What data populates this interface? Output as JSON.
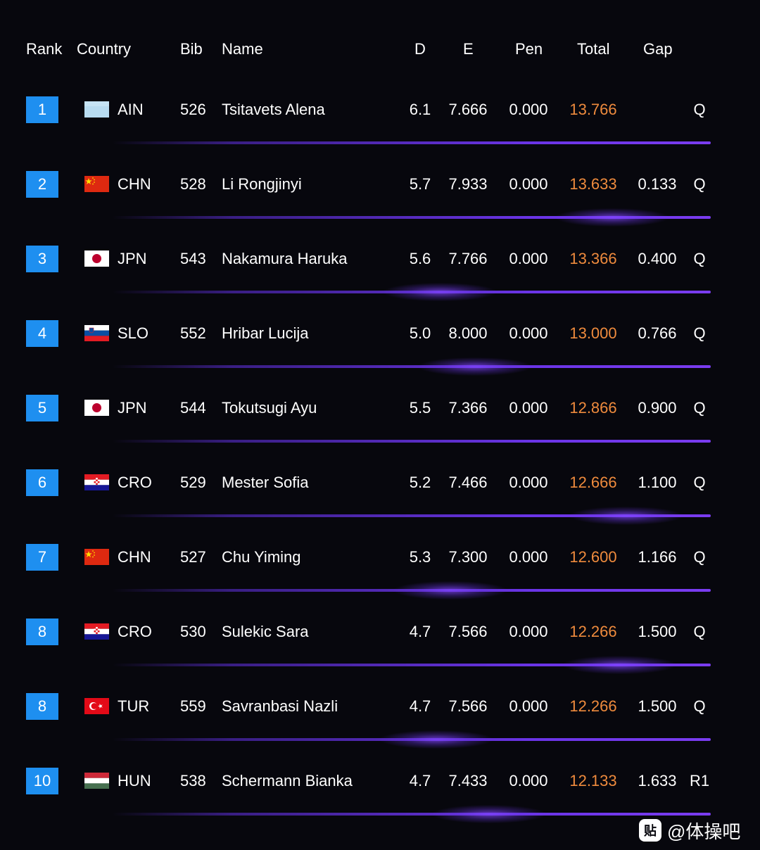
{
  "header": {
    "rank": "Rank",
    "country": "Country",
    "bib": "Bib",
    "name": "Name",
    "d": "D",
    "e": "E",
    "pen": "Pen",
    "total": "Total",
    "gap": "Gap"
  },
  "rows": [
    {
      "rank": "1",
      "country": "AIN",
      "flag": "ain-flag-icon",
      "bib": "526",
      "name": "Tsitavets Alena",
      "d": "6.1",
      "e": "7.666",
      "pen": "0.000",
      "total": "13.766",
      "gap": "",
      "q": "Q"
    },
    {
      "rank": "2",
      "country": "CHN",
      "flag": "chn-flag-icon",
      "bib": "528",
      "name": "Li Rongjinyi",
      "d": "5.7",
      "e": "7.933",
      "pen": "0.000",
      "total": "13.633",
      "gap": "0.133",
      "q": "Q"
    },
    {
      "rank": "3",
      "country": "JPN",
      "flag": "jpn-flag-icon",
      "bib": "543",
      "name": "Nakamura Haruka",
      "d": "5.6",
      "e": "7.766",
      "pen": "0.000",
      "total": "13.366",
      "gap": "0.400",
      "q": "Q"
    },
    {
      "rank": "4",
      "country": "SLO",
      "flag": "slo-flag-icon",
      "bib": "552",
      "name": "Hribar Lucija",
      "d": "5.0",
      "e": "8.000",
      "pen": "0.000",
      "total": "13.000",
      "gap": "0.766",
      "q": "Q"
    },
    {
      "rank": "5",
      "country": "JPN",
      "flag": "jpn-flag-icon",
      "bib": "544",
      "name": "Tokutsugi Ayu",
      "d": "5.5",
      "e": "7.366",
      "pen": "0.000",
      "total": "12.866",
      "gap": "0.900",
      "q": "Q"
    },
    {
      "rank": "6",
      "country": "CRO",
      "flag": "cro-flag-icon",
      "bib": "529",
      "name": "Mester Sofia",
      "d": "5.2",
      "e": "7.466",
      "pen": "0.000",
      "total": "12.666",
      "gap": "1.100",
      "q": "Q"
    },
    {
      "rank": "7",
      "country": "CHN",
      "flag": "chn-flag-icon",
      "bib": "527",
      "name": "Chu Yiming",
      "d": "5.3",
      "e": "7.300",
      "pen": "0.000",
      "total": "12.600",
      "gap": "1.166",
      "q": "Q"
    },
    {
      "rank": "8",
      "country": "CRO",
      "flag": "cro-flag-icon",
      "bib": "530",
      "name": "Sulekic Sara",
      "d": "4.7",
      "e": "7.566",
      "pen": "0.000",
      "total": "12.266",
      "gap": "1.500",
      "q": "Q"
    },
    {
      "rank": "8",
      "country": "TUR",
      "flag": "tur-flag-icon",
      "bib": "559",
      "name": "Savranbasi Nazli",
      "d": "4.7",
      "e": "7.566",
      "pen": "0.000",
      "total": "12.266",
      "gap": "1.500",
      "q": "Q"
    },
    {
      "rank": "10",
      "country": "HUN",
      "flag": "hun-flag-icon",
      "bib": "538",
      "name": "Schermann Bianka",
      "d": "4.7",
      "e": "7.433",
      "pen": "0.000",
      "total": "12.133",
      "gap": "1.633",
      "q": "R1"
    }
  ],
  "colors": {
    "background": "#07070d",
    "rank_box": "#1e8ff0",
    "total_text": "#ef8b3d",
    "separator": "#6a34e6"
  },
  "watermark": {
    "icon": "tieba-icon",
    "icon_glyph": "贴",
    "text": "@体操吧"
  }
}
